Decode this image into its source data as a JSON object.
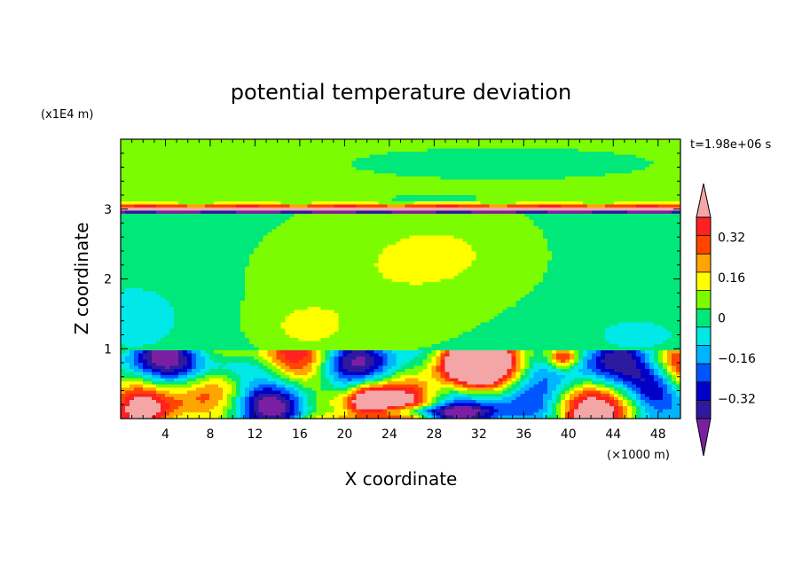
{
  "chart_data": {
    "type": "heatmap",
    "title": "potential temperature deviation",
    "xlabel": "X coordinate",
    "ylabel": "Z coordinate",
    "x_unit": "(×1000 m)",
    "y_unit": "(x1E4 m)",
    "time_label": "t=1.98e+06 s",
    "xlim": [
      0,
      50
    ],
    "ylim": [
      0,
      4
    ],
    "x_ticks": [
      4,
      8,
      12,
      16,
      20,
      24,
      28,
      32,
      36,
      40,
      44,
      48
    ],
    "y_ticks": [
      1,
      2,
      3
    ],
    "x_tick_labels": [
      "4",
      "8",
      "12",
      "16",
      "20",
      "24",
      "28",
      "32",
      "36",
      "40",
      "44",
      "48"
    ],
    "y_tick_labels": [
      "1",
      "2",
      "3"
    ],
    "colorbar": {
      "levels": [
        -0.48,
        -0.4,
        -0.32,
        -0.24,
        -0.16,
        -0.08,
        0,
        0.08,
        0.16,
        0.24,
        0.32,
        0.4
      ],
      "colors": [
        "#7b1fa2",
        "#2d1a9e",
        "#0000c8",
        "#0055ff",
        "#00b4ff",
        "#00e8e8",
        "#00e87a",
        "#7cfc00",
        "#ffff00",
        "#ffa500",
        "#ff4500",
        "#ff2020",
        "#f4a6a6"
      ],
      "tick_values": [
        0.32,
        0.16,
        0,
        -0.16,
        -0.32
      ],
      "tick_labels": [
        "0.32",
        "0.16",
        "0",
        "−0.16",
        "−0.32"
      ],
      "extend": "both"
    },
    "field_regions": [
      {
        "value": 0.04,
        "note": "upper layer background",
        "x": [
          0,
          50
        ],
        "z": [
          3.0,
          4.0
        ]
      },
      {
        "value": -0.04,
        "note": "upper tongue",
        "x": [
          18,
          50
        ],
        "z": [
          3.4,
          3.9
        ]
      },
      {
        "value": -0.04,
        "note": "mid layer background",
        "x": [
          0,
          50
        ],
        "z": [
          1.0,
          2.95
        ]
      },
      {
        "value": 0.04,
        "note": "mid plume",
        "x": [
          7,
          37
        ],
        "z": [
          1.0,
          2.9
        ]
      },
      {
        "value": 0.12,
        "note": "warm bubble",
        "x": [
          12,
          21
        ],
        "z": [
          1.0,
          1.7
        ]
      },
      {
        "value": -0.12,
        "note": "cool pocket",
        "x": [
          0,
          6
        ],
        "z": [
          1.0,
          1.9
        ]
      },
      {
        "value": 0.4,
        "note": "warm anomaly",
        "x": [
          27,
          34
        ],
        "z": [
          0.4,
          1.0
        ]
      },
      {
        "value": 0.4,
        "note": "warm anomaly",
        "x": [
          38,
          41
        ],
        "z": [
          0.7,
          1.0
        ]
      },
      {
        "value": -0.4,
        "note": "cold anomaly",
        "x": [
          45,
          50
        ],
        "z": [
          0.1,
          0.8
        ]
      },
      {
        "value": 0.4,
        "note": "warm anomaly",
        "x": [
          20,
          24
        ],
        "z": [
          0.0,
          0.5
        ]
      }
    ]
  }
}
